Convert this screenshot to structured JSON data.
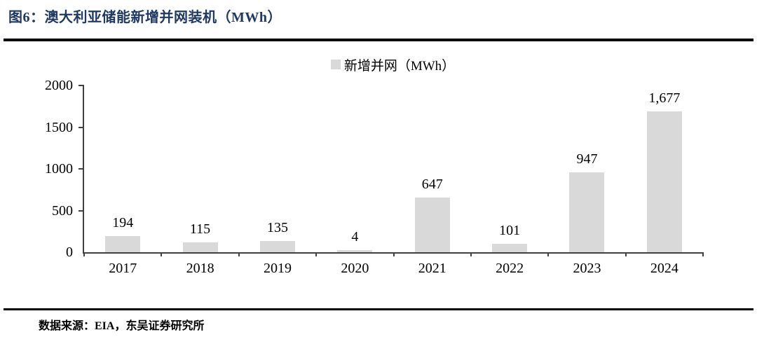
{
  "figure": {
    "title": "图6：澳大利亚储能新增并网装机（MWh）",
    "title_color": "#1f3864",
    "source_text": "数据来源：EIA，东吴证券研究所"
  },
  "chart_data": {
    "type": "bar",
    "title": "澳大利亚储能新增并网装机（MWh）",
    "legend": "新增并网（MWh）",
    "legend_position": "top-center",
    "categories": [
      "2017",
      "2018",
      "2019",
      "2020",
      "2021",
      "2022",
      "2023",
      "2024"
    ],
    "values": [
      194,
      115,
      135,
      4,
      647,
      101,
      947,
      1677
    ],
    "value_labels": [
      "194",
      "115",
      "135",
      "4",
      "647",
      "101",
      "947",
      "1,677"
    ],
    "xlabel": "",
    "ylabel": "",
    "ylim": [
      0,
      2000
    ],
    "yticks": [
      0,
      500,
      1000,
      1500,
      2000
    ],
    "grid": false,
    "bar_color": "#d9d9d9",
    "axis_color": "#404040",
    "label_color": "#000000"
  }
}
